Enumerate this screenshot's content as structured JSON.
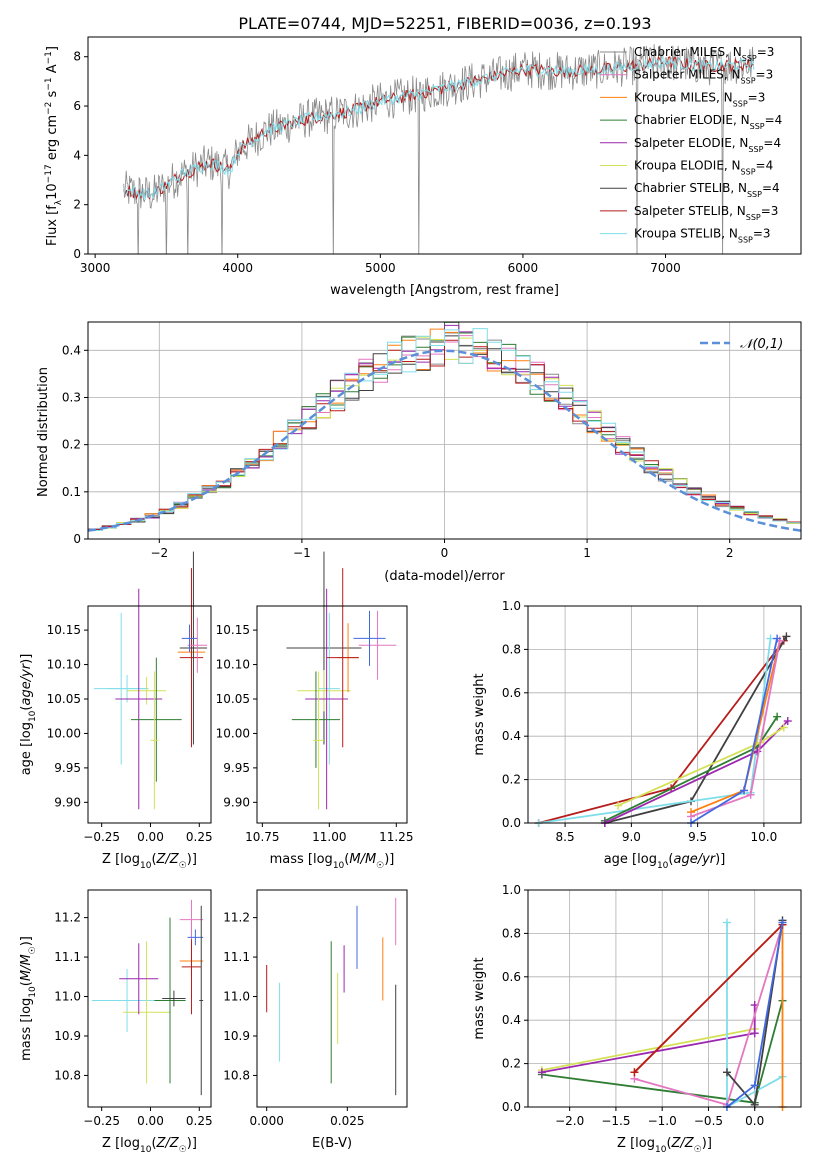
{
  "figure": {
    "title": "PLATE=0744, MJD=52251, FIBERID=0036, z=0.193"
  },
  "colors": {
    "chabrier_miles": "#8a8a8a",
    "salpeter_miles": "#e377c2",
    "kroupa_miles": "#ff7f0e",
    "chabrier_elodie": "#2e7d32",
    "salpeter_elodie": "#9c27b0",
    "kroupa_elodie": "#d4e157",
    "chabrier_stelib": "#404040",
    "salpeter_stelib": "#b71c1c",
    "kroupa_stelib": "#80deea",
    "normal_curve": "#5b8fd9",
    "blue_extra": "#4169e1",
    "grid": "#b0b0b0"
  },
  "chart_data": [
    {
      "id": "spectrum",
      "type": "line",
      "xlabel": "wavelength [Angstrom, rest frame]",
      "ylabel": "Flux [f_λ10^-17 erg cm^-2 s^-1 A^-1]",
      "xlim": [
        2950,
        7950
      ],
      "ylim": [
        0,
        8.8
      ],
      "xticks": [
        3000,
        4000,
        5000,
        6000,
        7000
      ],
      "yticks": [
        0,
        2,
        4,
        6,
        8
      ],
      "grid": false,
      "legend_position": "right",
      "legend": [
        {
          "label": "Chabrier MILES, N",
          "sub": "SSP",
          "suffix": "=3",
          "color": "#8a8a8a"
        },
        {
          "label": "Salpeter MILES, N",
          "sub": "SSP",
          "suffix": "=3",
          "color": "#e377c2"
        },
        {
          "label": "Kroupa MILES, N",
          "sub": "SSP",
          "suffix": "=3",
          "color": "#ff7f0e"
        },
        {
          "label": "Chabrier ELODIE, N",
          "sub": "SSP",
          "suffix": "=4",
          "color": "#2e7d32"
        },
        {
          "label": "Salpeter ELODIE, N",
          "sub": "SSP",
          "suffix": "=4",
          "color": "#9c27b0"
        },
        {
          "label": "Kroupa ELODIE, N",
          "sub": "SSP",
          "suffix": "=4",
          "color": "#d4e157"
        },
        {
          "label": "Chabrier STELIB, N",
          "sub": "SSP",
          "suffix": "=4",
          "color": "#404040"
        },
        {
          "label": "Salpeter STELIB, N",
          "sub": "SSP",
          "suffix": "=3",
          "color": "#b71c1c"
        },
        {
          "label": "Kroupa STELIB, N",
          "sub": "SSP",
          "suffix": "=3",
          "color": "#80deea"
        }
      ],
      "continuum": [
        [
          3200,
          2.6
        ],
        [
          3400,
          2.4
        ],
        [
          3600,
          3.2
        ],
        [
          3800,
          3.7
        ],
        [
          3950,
          3.4
        ],
        [
          4000,
          4.2
        ],
        [
          4200,
          5.0
        ],
        [
          4500,
          5.5
        ],
        [
          4800,
          5.8
        ],
        [
          5000,
          6.2
        ],
        [
          5200,
          6.4
        ],
        [
          5500,
          6.8
        ],
        [
          5800,
          7.2
        ],
        [
          6000,
          7.5
        ],
        [
          6300,
          7.4
        ],
        [
          6600,
          7.5
        ],
        [
          7000,
          7.8
        ],
        [
          7300,
          7.6
        ],
        [
          7600,
          7.7
        ]
      ],
      "absorption_spikes": [
        3300,
        3500,
        3650,
        3890,
        4670,
        5270,
        6800,
        7400
      ]
    },
    {
      "id": "residuals",
      "type": "histogram",
      "xlabel": "(data-model)/error",
      "ylabel": "Normed distribution",
      "xlim": [
        -2.5,
        2.5
      ],
      "ylim": [
        0,
        0.46
      ],
      "xticks": [
        -2,
        -1,
        0,
        1,
        2
      ],
      "yticks": [
        0.0,
        0.1,
        0.2,
        0.3,
        0.4
      ],
      "grid": true,
      "bin_width": 0.1,
      "legend_position": "upper right",
      "curve": {
        "label": "𝒩(0,1)",
        "mu": 0,
        "sigma": 1
      }
    },
    {
      "id": "age_vs_Z",
      "type": "errorbar",
      "xlabel": "Z [log10(Z/Z☉)]",
      "ylabel": "age  [log10(age/yr)]",
      "xlim": [
        -0.32,
        0.31
      ],
      "ylim": [
        9.87,
        10.185
      ],
      "xticks": [
        -0.25,
        0.0,
        0.25
      ],
      "xticklabels": [
        "−0.25",
        "0.00",
        "0.25"
      ],
      "yticks": [
        9.9,
        9.95,
        10.0,
        10.05,
        10.1,
        10.15
      ],
      "yticklabels": [
        "9.90",
        "9.95",
        "10.00",
        "10.05",
        "10.10",
        "10.15"
      ],
      "points": [
        {
          "x": -0.15,
          "y": 10.065,
          "xerr": 0.14,
          "yerr": 0.11,
          "color": "#80deea"
        },
        {
          "x": -0.12,
          "y": 10.065,
          "xerr": 0.1,
          "yerr": 0.02,
          "color": "#80deea"
        },
        {
          "x": -0.02,
          "y": 10.062,
          "xerr": 0.1,
          "yerr": 0.02,
          "color": "#d4e157"
        },
        {
          "x": -0.06,
          "y": 10.05,
          "xerr": 0.12,
          "yerr": 0.16,
          "color": "#9c27b0"
        },
        {
          "x": 0.03,
          "y": 10.02,
          "xerr": 0.13,
          "yerr": 0.09,
          "color": "#2e7d32"
        },
        {
          "x": 0.02,
          "y": 9.99,
          "xerr": 0.02,
          "yerr": 0.1,
          "color": "#d4e157"
        },
        {
          "x": 0.21,
          "y": 10.118,
          "xerr": 0.07,
          "yerr": 0.05,
          "color": "#ff7f0e"
        },
        {
          "x": 0.21,
          "y": 10.11,
          "xerr": 0.06,
          "yerr": 0.13,
          "color": "#b71c1c"
        },
        {
          "x": 0.22,
          "y": 10.124,
          "xerr": 0.07,
          "yerr": 0.14,
          "color": "#404040"
        },
        {
          "x": 0.24,
          "y": 10.128,
          "xerr": 0.05,
          "yerr": 0.04,
          "color": "#e377c2"
        },
        {
          "x": 0.2,
          "y": 10.138,
          "xerr": 0.04,
          "yerr": 0.02,
          "color": "#4169e1"
        }
      ]
    },
    {
      "id": "age_vs_mass",
      "type": "errorbar",
      "xlabel": "mass [log10(M/M☉)]",
      "ylabel": "",
      "xlim": [
        10.73,
        11.29
      ],
      "ylim": [
        9.87,
        10.185
      ],
      "xticks": [
        10.75,
        11.0,
        11.25
      ],
      "xticklabels": [
        "10.75",
        "11.00",
        "11.25"
      ],
      "yticks": [
        9.9,
        9.95,
        10.0,
        10.05,
        10.1,
        10.15
      ],
      "yticklabels": [
        "9.90",
        "9.95",
        "10.00",
        "10.05",
        "10.10",
        "10.15"
      ],
      "points": [
        {
          "x": 10.98,
          "y": 10.124,
          "xerr": 0.14,
          "yerr": 0.14,
          "color": "#404040"
        },
        {
          "x": 11.0,
          "y": 10.065,
          "xerr": 0.04,
          "yerr": 0.11,
          "color": "#80deea"
        },
        {
          "x": 10.98,
          "y": 10.062,
          "xerr": 0.1,
          "yerr": 0.03,
          "color": "#d4e157"
        },
        {
          "x": 10.99,
          "y": 10.05,
          "xerr": 0.08,
          "yerr": 0.16,
          "color": "#9c27b0"
        },
        {
          "x": 10.95,
          "y": 10.02,
          "xerr": 0.09,
          "yerr": 0.07,
          "color": "#2e7d32"
        },
        {
          "x": 10.96,
          "y": 9.99,
          "xerr": 0.02,
          "yerr": 0.1,
          "color": "#d4e157"
        },
        {
          "x": 11.07,
          "y": 10.11,
          "xerr": 0.04,
          "yerr": 0.05,
          "color": "#ff7f0e"
        },
        {
          "x": 11.05,
          "y": 10.11,
          "xerr": 0.06,
          "yerr": 0.13,
          "color": "#b71c1c"
        },
        {
          "x": 11.18,
          "y": 10.128,
          "xerr": 0.07,
          "yerr": 0.05,
          "color": "#e377c2"
        },
        {
          "x": 11.15,
          "y": 10.138,
          "xerr": 0.06,
          "yerr": 0.04,
          "color": "#4169e1"
        }
      ]
    },
    {
      "id": "weight_vs_age",
      "type": "line",
      "xlabel": "age  [log10(age/yr)]",
      "ylabel": "mass weight",
      "xlim": [
        8.22,
        10.28
      ],
      "ylim": [
        0,
        1
      ],
      "xticks": [
        8.5,
        9.0,
        9.5,
        10.0
      ],
      "xticklabels": [
        "8.5",
        "9.0",
        "9.5",
        "10.0"
      ],
      "yticks": [
        0.0,
        0.2,
        0.4,
        0.6,
        0.8,
        1.0
      ],
      "yticklabels": [
        "0.0",
        "0.2",
        "0.4",
        "0.6",
        "0.8",
        "1.0"
      ],
      "grid": true,
      "series": [
        {
          "color": "#b71c1c",
          "points": [
            [
              8.3,
              0.0
            ],
            [
              9.3,
              0.16
            ],
            [
              10.15,
              0.84
            ]
          ]
        },
        {
          "color": "#404040",
          "points": [
            [
              8.8,
              0.0
            ],
            [
              9.45,
              0.1
            ],
            [
              10.17,
              0.86
            ]
          ]
        },
        {
          "color": "#80deea",
          "points": [
            [
              8.3,
              0.0
            ],
            [
              9.9,
              0.14
            ],
            [
              10.05,
              0.85
            ]
          ]
        },
        {
          "color": "#2e7d32",
          "points": [
            [
              8.8,
              0.01
            ],
            [
              9.95,
              0.35
            ],
            [
              10.1,
              0.49
            ]
          ]
        },
        {
          "color": "#9c27b0",
          "points": [
            [
              8.8,
              0.0
            ],
            [
              9.95,
              0.33
            ],
            [
              10.18,
              0.47
            ]
          ]
        },
        {
          "color": "#d4e157",
          "points": [
            [
              8.9,
              0.08
            ],
            [
              9.97,
              0.37
            ],
            [
              10.15,
              0.44
            ]
          ]
        },
        {
          "color": "#ff7f0e",
          "points": [
            [
              9.45,
              0.05
            ],
            [
              9.85,
              0.15
            ],
            [
              10.12,
              0.84
            ]
          ]
        },
        {
          "color": "#e377c2",
          "points": [
            [
              9.45,
              0.03
            ],
            [
              9.9,
              0.13
            ],
            [
              10.12,
              0.84
            ]
          ]
        },
        {
          "color": "#4169e1",
          "points": [
            [
              9.45,
              0.0
            ],
            [
              9.85,
              0.15
            ],
            [
              10.1,
              0.85
            ]
          ]
        }
      ]
    },
    {
      "id": "mass_vs_Z",
      "type": "errorbar",
      "xlabel": "Z [log10(Z/Z☉)]",
      "ylabel": "mass [log10(M/M☉)]",
      "xlim": [
        -0.32,
        0.31
      ],
      "ylim": [
        10.72,
        11.27
      ],
      "xticks": [
        -0.25,
        0.0,
        0.25
      ],
      "xticklabels": [
        "−0.25",
        "0.00",
        "0.25"
      ],
      "yticks": [
        10.8,
        10.9,
        11.0,
        11.1,
        11.2
      ],
      "yticklabels": [
        "10.8",
        "10.9",
        "11.0",
        "11.1",
        "11.2"
      ],
      "points": [
        {
          "x": -0.12,
          "y": 10.99,
          "xerr": 0.18,
          "yerr": 0.08,
          "color": "#80deea"
        },
        {
          "x": -0.02,
          "y": 10.96,
          "xerr": 0.12,
          "yerr": 0.18,
          "color": "#d4e157"
        },
        {
          "x": -0.06,
          "y": 11.045,
          "xerr": 0.1,
          "yerr": 0.09,
          "color": "#9c27b0"
        },
        {
          "x": 0.1,
          "y": 10.99,
          "xerr": 0.08,
          "yerr": 0.21,
          "color": "#2e7d32"
        },
        {
          "x": 0.12,
          "y": 10.995,
          "xerr": 0.06,
          "yerr": 0.02,
          "color": "#404040"
        },
        {
          "x": 0.21,
          "y": 11.09,
          "xerr": 0.06,
          "yerr": 0.04,
          "color": "#ff7f0e"
        },
        {
          "x": 0.21,
          "y": 11.075,
          "xerr": 0.05,
          "yerr": 0.12,
          "color": "#b71c1c"
        },
        {
          "x": 0.21,
          "y": 11.195,
          "xerr": 0.06,
          "yerr": 0.05,
          "color": "#e377c2"
        },
        {
          "x": 0.23,
          "y": 11.15,
          "xerr": 0.04,
          "yerr": 0.02,
          "color": "#4169e1"
        },
        {
          "x": 0.26,
          "y": 10.99,
          "xerr": 0.01,
          "yerr": 0.24,
          "color": "#404040"
        }
      ]
    },
    {
      "id": "mass_vs_EBV",
      "type": "errorbar",
      "xlabel": "E(B-V)",
      "ylabel": "",
      "xlim": [
        -0.003,
        0.0435
      ],
      "ylim": [
        10.72,
        11.27
      ],
      "xticks": [
        0.0,
        0.025
      ],
      "xticklabels": [
        "0.000",
        "0.025"
      ],
      "yticks": [
        10.8,
        10.9,
        11.0,
        11.1,
        11.2
      ],
      "yticklabels": [
        "10.8",
        "10.9",
        "11.0",
        "11.1",
        "11.2"
      ],
      "points": [
        {
          "x": 0.0,
          "y": 11.02,
          "xerr": 0,
          "yerr": 0.06,
          "color": "#b71c1c"
        },
        {
          "x": 0.004,
          "y": 10.935,
          "xerr": 0,
          "yerr": 0.1,
          "color": "#80deea"
        },
        {
          "x": 0.02,
          "y": 10.96,
          "xerr": 0,
          "yerr": 0.18,
          "color": "#2e7d32"
        },
        {
          "x": 0.022,
          "y": 10.97,
          "xerr": 0,
          "yerr": 0.09,
          "color": "#d4e157"
        },
        {
          "x": 0.024,
          "y": 11.07,
          "xerr": 0,
          "yerr": 0.06,
          "color": "#9c27b0"
        },
        {
          "x": 0.028,
          "y": 11.15,
          "xerr": 0,
          "yerr": 0.08,
          "color": "#4169e1"
        },
        {
          "x": 0.036,
          "y": 11.07,
          "xerr": 0,
          "yerr": 0.08,
          "color": "#ff7f0e"
        },
        {
          "x": 0.04,
          "y": 11.19,
          "xerr": 0,
          "yerr": 0.06,
          "color": "#e377c2"
        },
        {
          "x": 0.04,
          "y": 10.89,
          "xerr": 0,
          "yerr": 0.14,
          "color": "#404040"
        }
      ]
    },
    {
      "id": "weight_vs_Z",
      "type": "line",
      "xlabel": "Z [log10(Z/Z☉)]",
      "ylabel": "mass weight",
      "xlim": [
        -2.45,
        0.5
      ],
      "ylim": [
        0,
        1
      ],
      "xticks": [
        -2.0,
        -1.5,
        -1.0,
        -0.5,
        0.0
      ],
      "xticklabels": [
        "−2.0",
        "−1.5",
        "−1.0",
        "−0.5",
        "0.0"
      ],
      "yticks": [
        0.0,
        0.2,
        0.4,
        0.6,
        0.8,
        1.0
      ],
      "yticklabels": [
        "0.0",
        "0.2",
        "0.4",
        "0.6",
        "0.8",
        "1.0"
      ],
      "grid": true,
      "series": [
        {
          "color": "#d4e157",
          "points": [
            [
              -2.3,
              0.17
            ],
            [
              0.0,
              0.36
            ]
          ]
        },
        {
          "color": "#2e7d32",
          "points": [
            [
              -2.3,
              0.15
            ],
            [
              0.0,
              0.02
            ],
            [
              0.3,
              0.49
            ]
          ]
        },
        {
          "color": "#9c27b0",
          "points": [
            [
              -2.3,
              0.16
            ],
            [
              0.0,
              0.34
            ],
            [
              0.0,
              0.47
            ]
          ]
        },
        {
          "color": "#80deea",
          "points": [
            [
              -0.3,
              0.85
            ],
            [
              -0.3,
              0.0
            ],
            [
              0.3,
              0.14
            ]
          ]
        },
        {
          "color": "#e377c2",
          "points": [
            [
              -1.3,
              0.13
            ],
            [
              -0.3,
              0.01
            ],
            [
              0.3,
              0.84
            ]
          ]
        },
        {
          "color": "#ff7f0e",
          "points": [
            [
              -1.3,
              0.16
            ],
            [
              0.3,
              0.84
            ],
            [
              0.3,
              0.0
            ]
          ]
        },
        {
          "color": "#b71c1c",
          "points": [
            [
              -1.3,
              0.16
            ],
            [
              0.3,
              0.84
            ]
          ]
        },
        {
          "color": "#404040",
          "points": [
            [
              -0.3,
              0.16
            ],
            [
              0.0,
              0.01
            ],
            [
              0.3,
              0.86
            ]
          ]
        },
        {
          "color": "#4169e1",
          "points": [
            [
              -0.3,
              0.0
            ],
            [
              0.0,
              0.1
            ],
            [
              0.3,
              0.85
            ]
          ]
        }
      ]
    }
  ]
}
